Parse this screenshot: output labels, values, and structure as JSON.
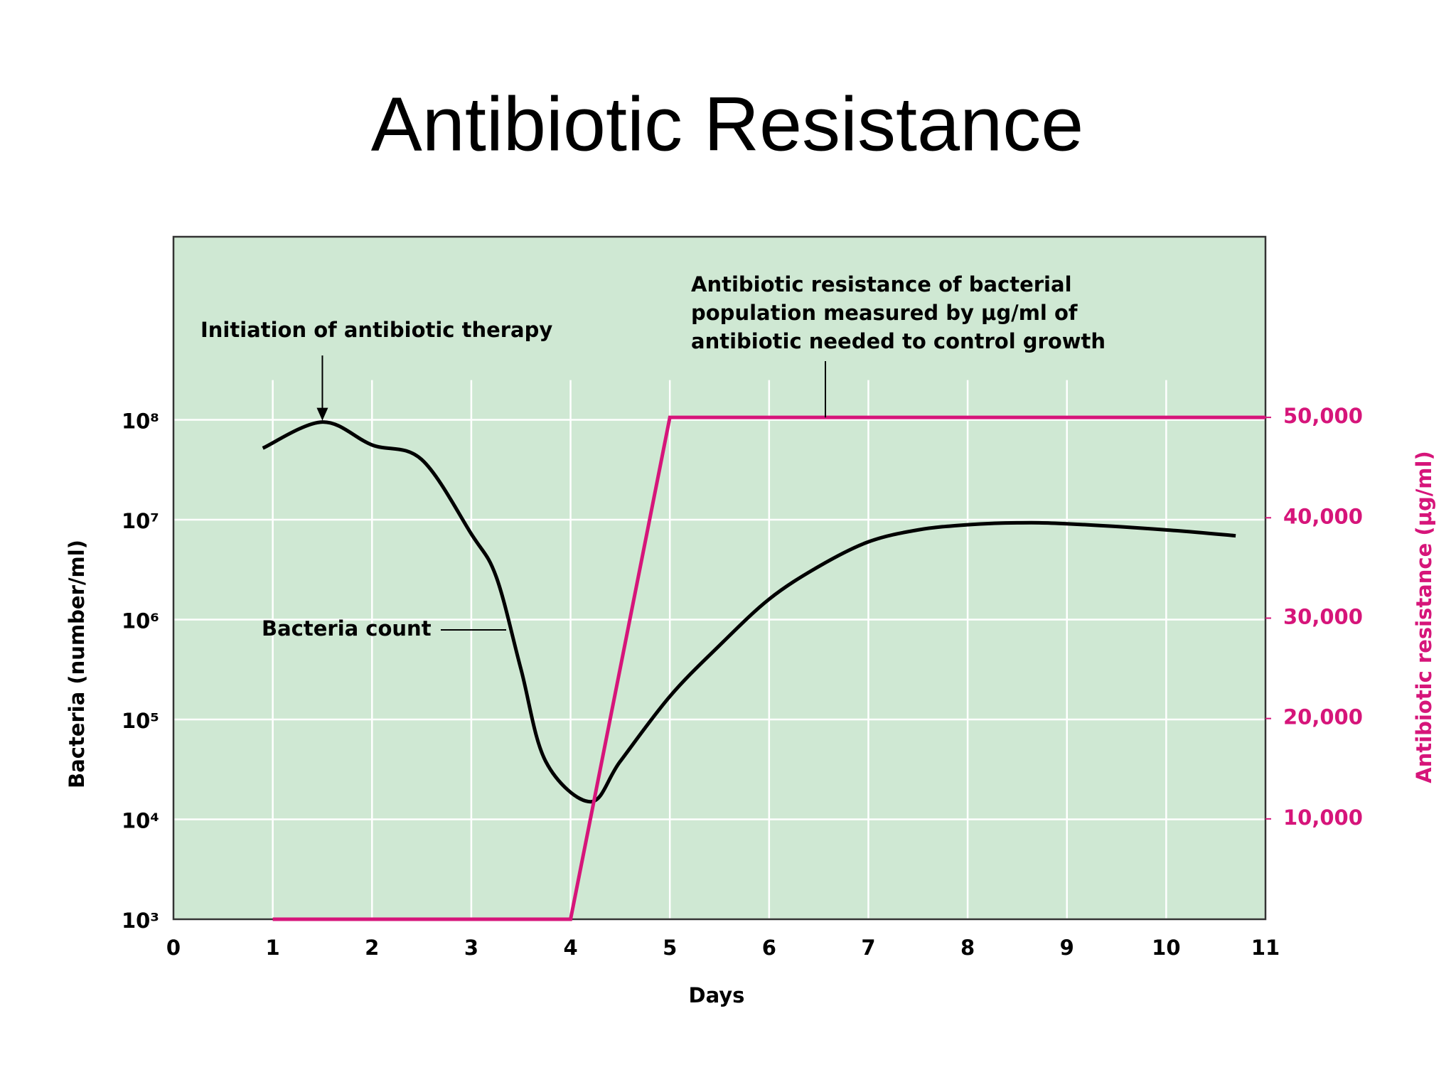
{
  "chart_data": {
    "type": "line",
    "title": "Antibiotic Resistance",
    "xlabel": "Days",
    "ylabel": "Bacteria (number/ml)",
    "y2label": "Antibiotic resistance (μg/ml)",
    "xlim": [
      0,
      11
    ],
    "xticks": [
      0,
      1,
      2,
      3,
      4,
      5,
      6,
      7,
      8,
      9,
      10,
      11
    ],
    "yscale": "log",
    "ylim": [
      1000,
      6800000000
    ],
    "yticks": [
      {
        "value": 1000,
        "label": "10³"
      },
      {
        "value": 10000,
        "label": "10⁴"
      },
      {
        "value": 100000,
        "label": "10⁵"
      },
      {
        "value": 1000000,
        "label": "10⁶"
      },
      {
        "value": 10000000,
        "label": "10⁷"
      },
      {
        "value": 100000000,
        "label": "10⁸"
      }
    ],
    "y2lim": [
      0,
      68000
    ],
    "y2ticks": [
      {
        "value": 10000,
        "label": "10,000"
      },
      {
        "value": 20000,
        "label": "20,000"
      },
      {
        "value": 30000,
        "label": "30,000"
      },
      {
        "value": 40000,
        "label": "40,000"
      },
      {
        "value": 50000,
        "label": "50,000"
      }
    ],
    "grid": true,
    "background": "#cfe8d3",
    "series": [
      {
        "name": "Bacteria count",
        "color": "#000000",
        "x": [
          0.9,
          1.5,
          2,
          2.5,
          3,
          3.25,
          3.5,
          3.75,
          4.2,
          4.5,
          5,
          5.5,
          6,
          6.5,
          7,
          7.5,
          8,
          8.5,
          9,
          10,
          10.7
        ],
        "values": [
          52000000,
          95000000,
          56000000,
          40000000,
          7200000,
          2700000,
          320000,
          38000,
          15000,
          38000,
          170000,
          550000,
          1600000,
          3400000,
          6000000,
          7900000,
          8900000,
          9300000,
          9100000,
          7900000,
          6900000
        ]
      },
      {
        "name": "Antibiotic resistance",
        "color": "#d6157a",
        "axis": "y2",
        "x": [
          1,
          4,
          5,
          11
        ],
        "values": [
          0,
          0,
          50000,
          50000
        ]
      }
    ],
    "annotations": [
      {
        "text": [
          "Initiation of antibiotic therapy"
        ]
      },
      {
        "text": [
          "Antibiotic resistance of bacterial",
          "population measured by μg/ml of",
          "antibiotic needed to control growth"
        ]
      }
    ]
  }
}
